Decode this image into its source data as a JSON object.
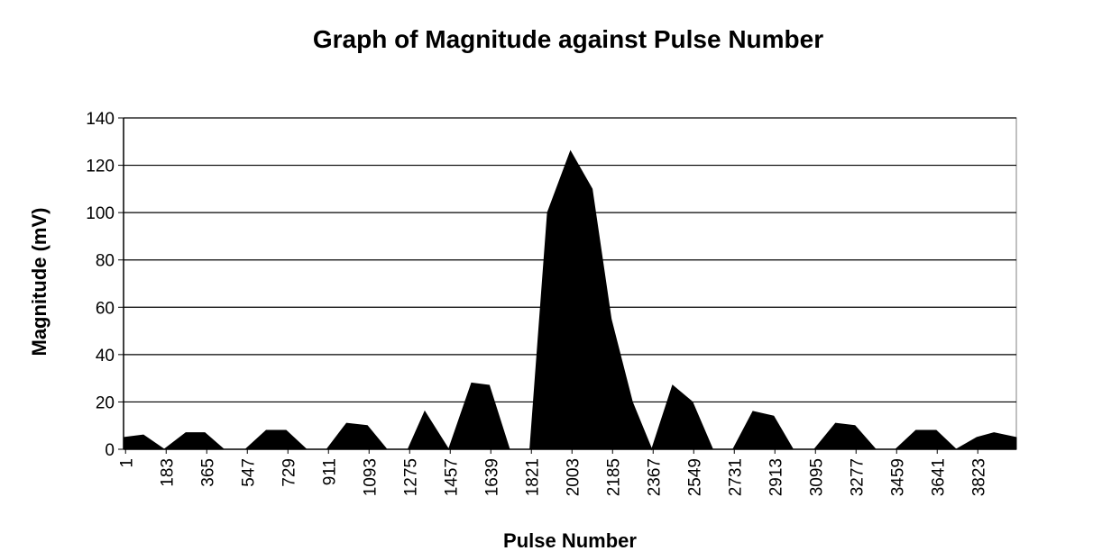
{
  "chart_data": {
    "type": "area",
    "title": "Graph of Magnitude against Pulse Number",
    "xlabel": "Pulse Number",
    "ylabel": "Magnitude (mV)",
    "ylim": [
      0,
      140
    ],
    "yticks": [
      0,
      20,
      40,
      60,
      80,
      100,
      120,
      140
    ],
    "xlim": [
      1,
      4000
    ],
    "xticks": [
      "1",
      "183",
      "365",
      "547",
      "729",
      "911",
      "1093",
      "1275",
      "1457",
      "1639",
      "1821",
      "2003",
      "2185",
      "2367",
      "2549",
      "2731",
      "2913",
      "3095",
      "3277",
      "3459",
      "3641",
      "3823"
    ],
    "grid": "horizontal",
    "legend": "none",
    "fill_color": "#000000",
    "series": [
      {
        "x": [
          1,
          90,
          183,
          280,
          365,
          450,
          547,
          640,
          729,
          820,
          911,
          1000,
          1093,
          1180,
          1275,
          1350,
          1457,
          1560,
          1639,
          1730,
          1821,
          1900,
          2003,
          2100,
          2185,
          2280,
          2367,
          2460,
          2549,
          2640,
          2731,
          2820,
          2913,
          3000,
          3095,
          3190,
          3277,
          3370,
          3459,
          3550,
          3641,
          3730,
          3823,
          3900,
          4000
        ],
        "y": [
          5,
          6,
          0,
          7,
          7,
          0,
          0,
          8,
          8,
          0,
          0,
          11,
          10,
          0,
          0,
          16,
          0,
          28,
          27,
          0,
          0,
          100,
          126,
          110,
          55,
          20,
          0,
          27,
          20,
          0,
          0,
          16,
          14,
          0,
          0,
          11,
          10,
          0,
          0,
          8,
          8,
          0,
          5,
          7,
          5
        ]
      }
    ]
  }
}
